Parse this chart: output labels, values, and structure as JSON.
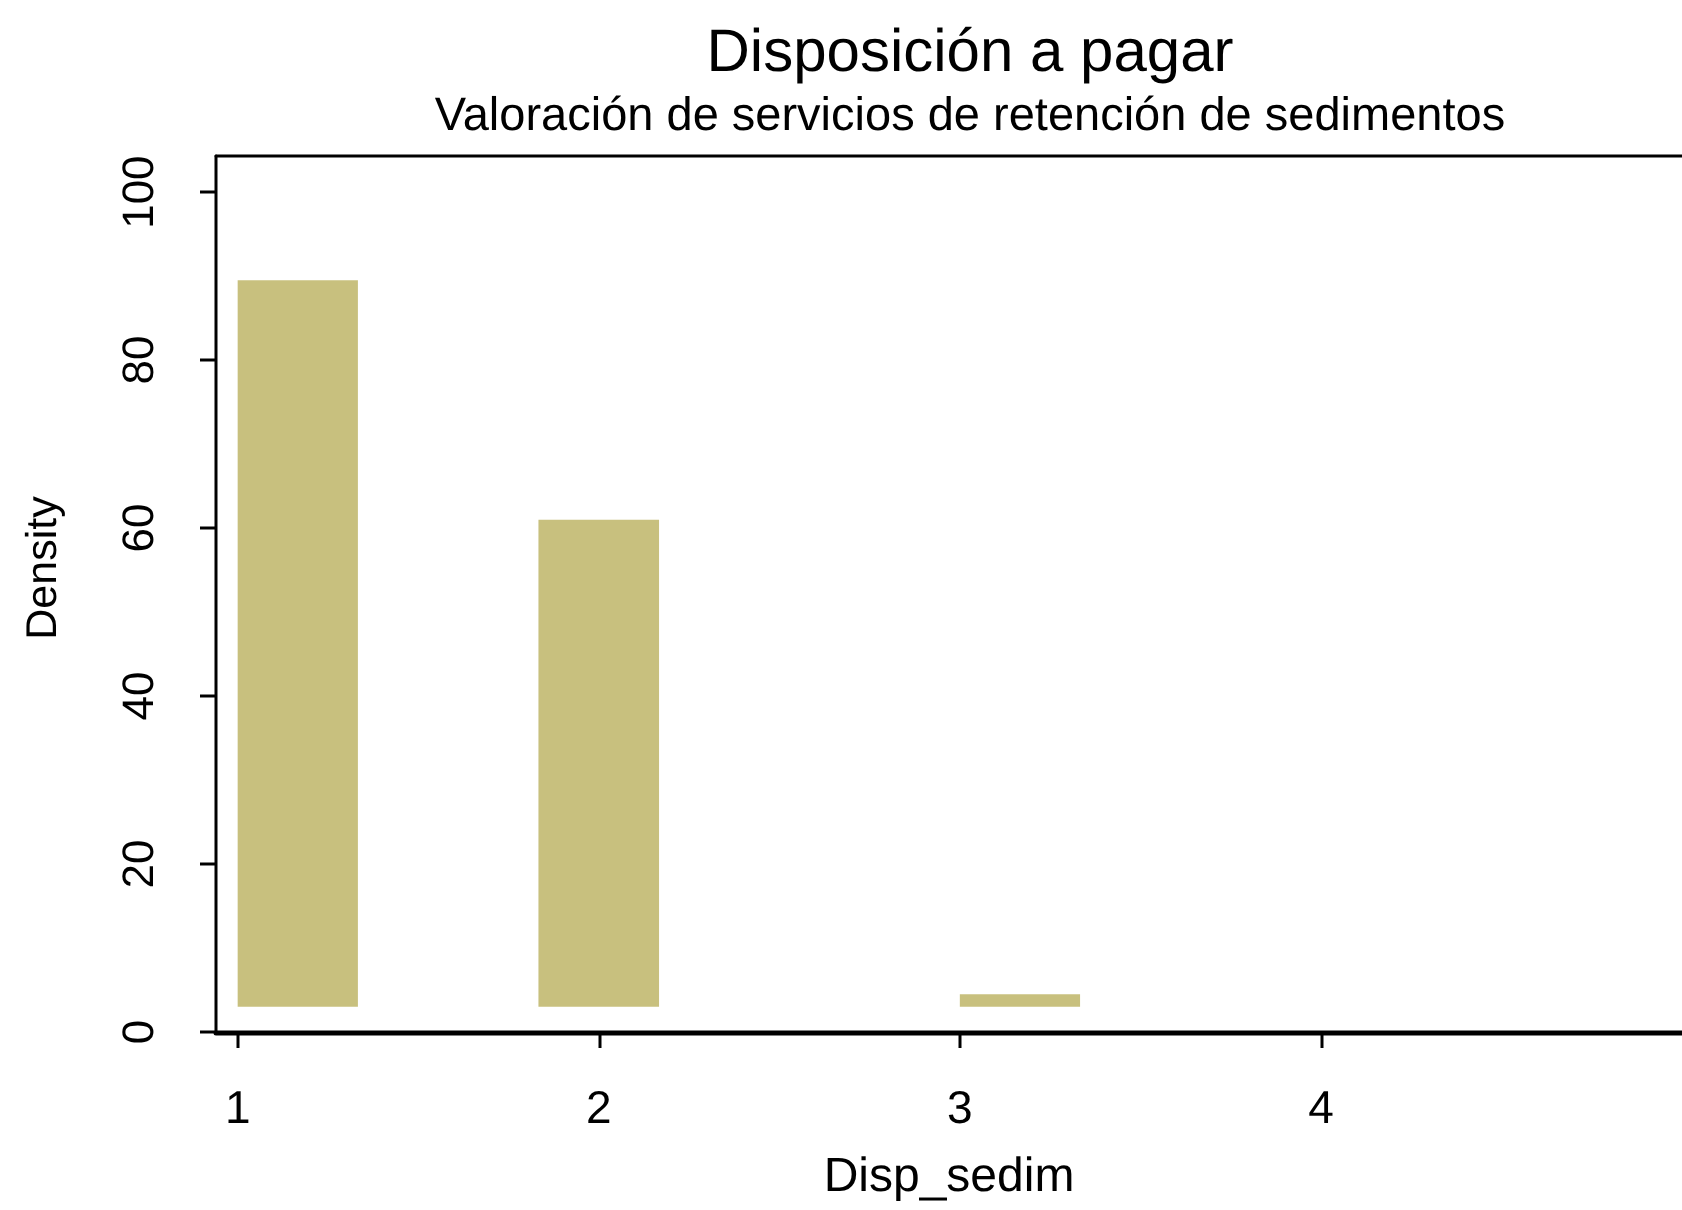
{
  "chart_data": {
    "type": "histogram",
    "title": "Disposición a pagar",
    "subtitle": "Valoración de servicios de retención de sedimentos",
    "xlabel": "Disp_sedim",
    "ylabel": "Density",
    "bins": [
      1,
      1.333,
      1.833,
      2.167,
      3,
      3.333
    ],
    "base": [
      3,
      null,
      3,
      null,
      3
    ],
    "values": [
      86.5,
      null,
      58,
      null,
      1.5
    ],
    "color": "#c8c07e",
    "xlim": [
      0.94,
      5.0
    ],
    "xticks": [
      1,
      2,
      3,
      4
    ],
    "ylim": [
      0,
      104.3
    ],
    "yticks": [
      0,
      20,
      40,
      60,
      80,
      100
    ]
  }
}
